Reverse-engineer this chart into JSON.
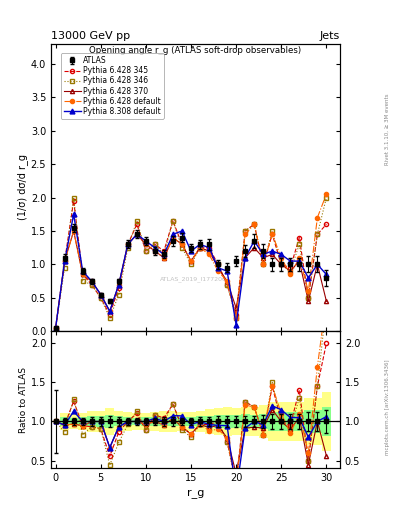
{
  "title_top": "13000 GeV pp",
  "title_right": "Jets",
  "panel_title": "Opening angle r_g (ATLAS soft-drop observables)",
  "ylabel_main": "(1/σ) dσ/d r_g",
  "ylabel_ratio": "Ratio to ATLAS",
  "xlabel": "r_g",
  "rivet_label": "Rivet 3.1.10, ≥ 3M events",
  "arxiv_label": "mcplots.cern.ch [arXiv:1306.3436]",
  "watermark": "ATLAS_2019_I1772062",
  "x": [
    0,
    1,
    2,
    3,
    4,
    5,
    6,
    7,
    8,
    9,
    10,
    11,
    12,
    13,
    14,
    15,
    16,
    17,
    18,
    19,
    20,
    21,
    22,
    23,
    24,
    25,
    26,
    27,
    28,
    29,
    30
  ],
  "atlas_y": [
    0.05,
    1.1,
    1.55,
    0.9,
    0.75,
    0.55,
    0.45,
    0.75,
    1.3,
    1.45,
    1.35,
    1.2,
    1.15,
    1.35,
    1.4,
    1.25,
    1.3,
    1.3,
    1.0,
    0.95,
    1.05,
    1.2,
    1.35,
    1.2,
    1.0,
    1.0,
    1.0,
    1.0,
    1.0,
    1.0,
    0.8
  ],
  "atlas_yerr": [
    0.02,
    0.05,
    0.06,
    0.04,
    0.04,
    0.03,
    0.03,
    0.04,
    0.06,
    0.06,
    0.06,
    0.06,
    0.06,
    0.07,
    0.07,
    0.06,
    0.07,
    0.08,
    0.07,
    0.07,
    0.07,
    0.09,
    0.1,
    0.1,
    0.1,
    0.1,
    0.1,
    0.1,
    0.12,
    0.12,
    0.12
  ],
  "p6_345_y": [
    0.05,
    1.05,
    1.95,
    0.85,
    0.7,
    0.5,
    0.25,
    0.65,
    1.3,
    1.6,
    1.2,
    1.3,
    1.2,
    1.65,
    1.3,
    1.05,
    1.25,
    1.25,
    1.0,
    0.7,
    0.25,
    1.5,
    1.6,
    1.0,
    1.45,
    1.0,
    0.95,
    1.4,
    0.5,
    1.45,
    1.6
  ],
  "p6_346_y": [
    0.05,
    0.95,
    2.0,
    0.75,
    0.7,
    0.5,
    0.2,
    0.55,
    1.25,
    1.65,
    1.2,
    1.3,
    1.15,
    1.65,
    1.25,
    1.0,
    1.25,
    1.2,
    1.0,
    0.7,
    0.2,
    1.5,
    1.6,
    1.0,
    1.5,
    1.0,
    0.9,
    1.3,
    0.5,
    1.45,
    2.0
  ],
  "p6_370_y": [
    0.05,
    1.05,
    1.5,
    0.85,
    0.75,
    0.55,
    0.3,
    0.7,
    1.3,
    1.45,
    1.3,
    1.2,
    1.1,
    1.4,
    1.3,
    1.05,
    1.25,
    1.2,
    0.95,
    0.75,
    0.35,
    1.1,
    1.25,
    1.1,
    1.15,
    1.0,
    0.9,
    1.05,
    0.45,
    1.0,
    0.45
  ],
  "p6_def_y": [
    0.05,
    1.05,
    1.5,
    0.85,
    0.75,
    0.55,
    0.3,
    0.7,
    1.3,
    1.45,
    1.3,
    1.2,
    1.1,
    1.4,
    1.3,
    1.05,
    1.25,
    1.15,
    0.9,
    0.75,
    0.2,
    1.45,
    1.6,
    1.0,
    1.45,
    1.1,
    0.85,
    1.1,
    0.6,
    1.7,
    2.05
  ],
  "p8_def_y": [
    0.05,
    1.05,
    1.75,
    0.9,
    0.75,
    0.55,
    0.3,
    0.7,
    1.3,
    1.45,
    1.35,
    1.25,
    1.15,
    1.45,
    1.5,
    1.2,
    1.3,
    1.25,
    0.95,
    0.9,
    0.1,
    1.1,
    1.35,
    1.15,
    1.2,
    1.15,
    1.05,
    1.05,
    0.8,
    1.0,
    0.85
  ],
  "atlas_color": "#000000",
  "p6_345_color": "#dd0000",
  "p6_346_color": "#997700",
  "p6_370_color": "#990000",
  "p6_def_color": "#ff6600",
  "p8_def_color": "#0000cc",
  "ylim_main": [
    0,
    4.3
  ],
  "ylim_ratio": [
    0.4,
    2.15
  ],
  "xlim": [
    -0.5,
    31.5
  ],
  "bg_yellow": "#ffff88",
  "bg_green": "#88ff88",
  "yticks_main": [
    0,
    0.5,
    1.0,
    1.5,
    2.0,
    2.5,
    3.0,
    3.5,
    4.0
  ],
  "yticks_ratio": [
    0.5,
    1.0,
    1.5,
    2.0
  ]
}
